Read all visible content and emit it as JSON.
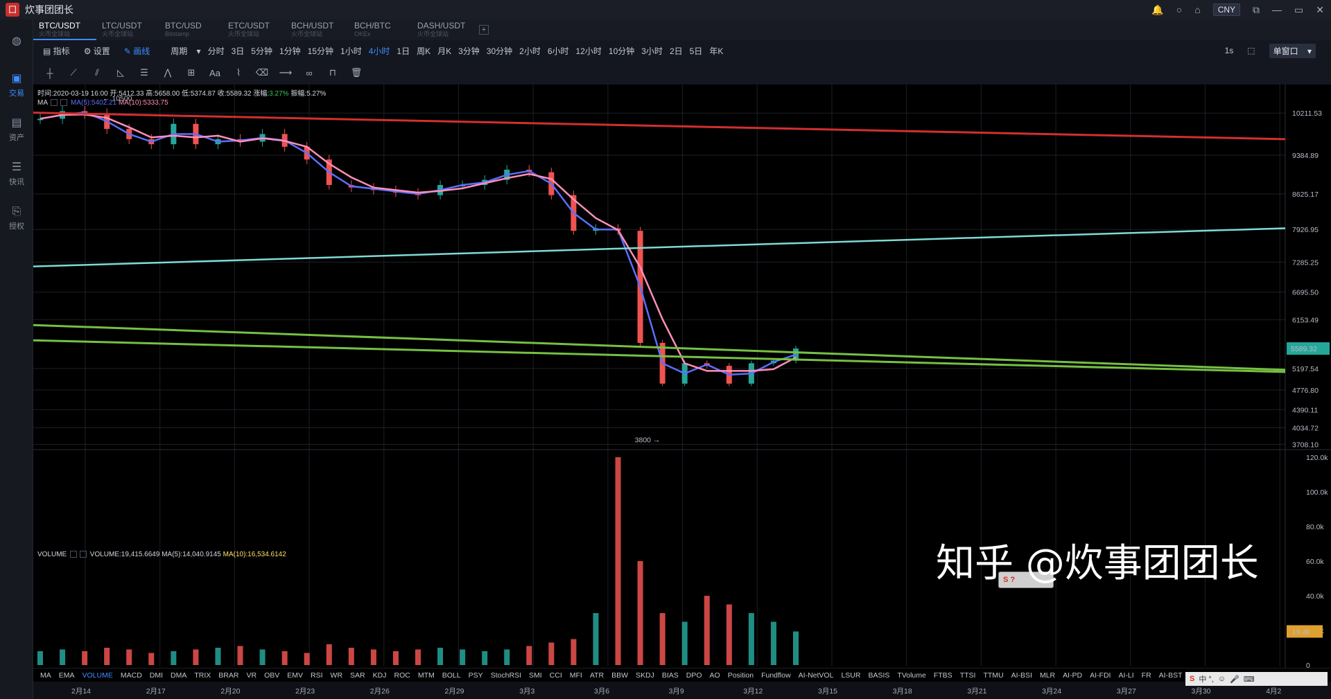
{
  "app": {
    "title": "炊事团团长",
    "currency": "CNY"
  },
  "sidebar": [
    {
      "label": "",
      "icon": "globe-icon"
    },
    {
      "label": "交易",
      "icon": "trade-icon"
    },
    {
      "label": "资产",
      "icon": "assets-icon"
    },
    {
      "label": "快讯",
      "icon": "news-icon"
    },
    {
      "label": "授权",
      "icon": "auth-icon"
    }
  ],
  "tabs": [
    {
      "name": "BTC/USDT",
      "sub": "火币全球站"
    },
    {
      "name": "LTC/USDT",
      "sub": "火币全球站"
    },
    {
      "name": "BTC/USD",
      "sub": "Bitstamp"
    },
    {
      "name": "ETC/USDT",
      "sub": "火币全球站"
    },
    {
      "name": "BCH/USDT",
      "sub": "火币全球站"
    },
    {
      "name": "BCH/BTC",
      "sub": "OKEx"
    },
    {
      "name": "DASH/USDT",
      "sub": "火币全球站"
    }
  ],
  "toolbar1": {
    "indicator": "指标",
    "settings": "设置",
    "draw": "画线",
    "period": "周期",
    "periods": [
      "分时",
      "3日",
      "5分钟",
      "1分钟",
      "15分钟",
      "1小时",
      "4小时",
      "1日",
      "周K",
      "月K",
      "3分钟",
      "30分钟",
      "2小时",
      "6小时",
      "12小时",
      "10分钟",
      "3小时",
      "2日",
      "5日",
      "年K"
    ],
    "active_period": "4小时",
    "right_interval": "1s",
    "single_window": "单窗口"
  },
  "info": {
    "time": "时间:2020-03-19 16:00",
    "open": "开:5412.33",
    "high": "高:5658.00",
    "low": "低:5374.87",
    "close": "收:5589.32",
    "change_label": "涨幅:",
    "change": "3.27%",
    "amplitude": "振幅:5.27%"
  },
  "ma_legend": {
    "name": "MA",
    "ma5": "MA(5):5402.21",
    "ma10": "MA(10):5333.75"
  },
  "vol_legend": {
    "name": "VOLUME",
    "vol": "VOLUME:19,415.6649",
    "ma5": "MA(5):14,040.9145",
    "ma10": "MA(10):16,534.6142"
  },
  "annotations": {
    "high": "10500",
    "low": "3800",
    "last_price": "5589.32",
    "last_volume": "19.4k"
  },
  "price_axis": [
    "10211.53",
    "9384.89",
    "8625.17",
    "7926.95",
    "7285.25",
    "6695.50",
    "6153.49",
    "5197.54",
    "4776.80",
    "4390.11",
    "4034.72",
    "3708.10"
  ],
  "volume_axis": [
    "120.0k",
    "100.0k",
    "80.0k",
    "60.0k",
    "40.0k",
    "20.0k",
    "0"
  ],
  "dates": [
    "2月14",
    "2月17",
    "2月20",
    "2月23",
    "2月26",
    "2月29",
    "3月3",
    "3月6",
    "3月9",
    "3月12",
    "3月15",
    "3月18",
    "3月21",
    "3月24",
    "3月27",
    "3月30",
    "4月2"
  ],
  "indicators": [
    "MA",
    "EMA",
    "VOLUME",
    "MACD",
    "DMI",
    "DMA",
    "TRIX",
    "BRAR",
    "VR",
    "OBV",
    "EMV",
    "RSI",
    "WR",
    "SAR",
    "KDJ",
    "ROC",
    "MTM",
    "BOLL",
    "PSY",
    "StochRSI",
    "SMI",
    "CCI",
    "MFI",
    "ATR",
    "BBW",
    "SKDJ",
    "BIAS",
    "DPO",
    "AO",
    "Position",
    "Fundflow",
    "AI-NetVOL",
    "LSUR",
    "BASIS",
    "TVolume",
    "FTBS",
    "TTSI",
    "TTMU",
    "AI-BSI",
    "MLR",
    "AI-PD",
    "AI-FDI",
    "AI-LI",
    "FR",
    "AI-BST"
  ],
  "active_indicator": "VOLUME",
  "watermark": "知乎 @炊事团团长",
  "ime": {
    "float": "S ?",
    "tray": "中 °,"
  },
  "colors": {
    "up": "#26a69a",
    "down": "#ef5350",
    "ma5": "#5b6fff",
    "ma10": "#ff8fb8",
    "accent": "#3e8cff",
    "resistance": "#d32f2f",
    "support": "#7fdbd4",
    "channel": "#76c043"
  },
  "chart_data": {
    "type": "candlestick",
    "price_points": [
      [
        "2月14",
        10100
      ],
      [
        "2月15",
        10250
      ],
      [
        "2月16",
        10200
      ],
      [
        "2月17",
        9900
      ],
      [
        "2月18",
        9700
      ],
      [
        "2月19",
        9600
      ],
      [
        "2月20",
        10000
      ],
      [
        "2月21",
        9600
      ],
      [
        "2月22",
        9700
      ],
      [
        "2月23",
        9650
      ],
      [
        "2月24",
        9800
      ],
      [
        "2月25",
        9550
      ],
      [
        "2月26",
        9300
      ],
      [
        "2月27",
        8800
      ],
      [
        "2月28",
        8750
      ],
      [
        "2月29",
        8700
      ],
      [
        "3月1",
        8650
      ],
      [
        "3月2",
        8600
      ],
      [
        "3月3",
        8800
      ],
      [
        "3月4",
        8800
      ],
      [
        "3月5",
        8900
      ],
      [
        "3月6",
        9100
      ],
      [
        "3月7",
        9050
      ],
      [
        "3月8",
        8600
      ],
      [
        "3月9",
        7900
      ],
      [
        "3月10",
        7950
      ],
      [
        "3月11",
        7900
      ],
      [
        "3月12",
        5700
      ],
      [
        "3月13",
        4900
      ],
      [
        "3月14",
        5300
      ],
      [
        "3月15",
        5250
      ],
      [
        "3月16",
        4900
      ],
      [
        "3月17",
        5300
      ],
      [
        "3月18",
        5350
      ],
      [
        "3月19",
        5589.32
      ]
    ],
    "volume_points": [
      8,
      9,
      8,
      10,
      9,
      7,
      8,
      9,
      10,
      11,
      9,
      8,
      7,
      12,
      10,
      9,
      8,
      9,
      10,
      9,
      8,
      9,
      11,
      13,
      15,
      30,
      120,
      60,
      30,
      25,
      40,
      35,
      30,
      25,
      19.4
    ]
  }
}
